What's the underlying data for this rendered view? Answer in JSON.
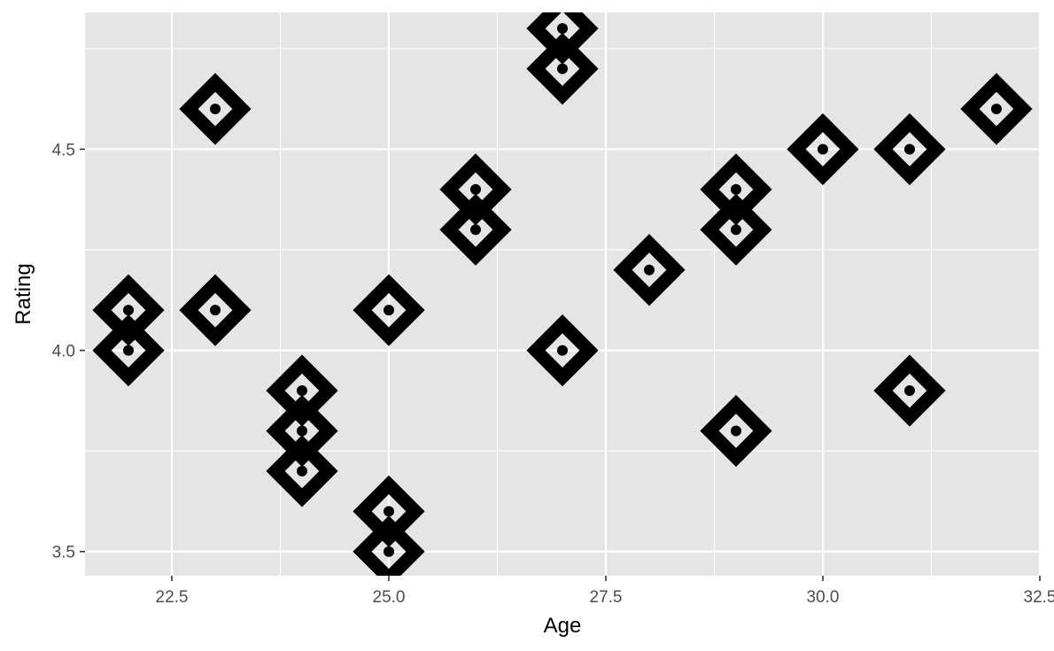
{
  "chart_data": {
    "type": "scatter",
    "title": "",
    "xlabel": "Age",
    "ylabel": "Rating",
    "xlim": [
      21.5,
      32.5
    ],
    "ylim": [
      3.44,
      4.84
    ],
    "x_ticks": [
      22.5,
      25.0,
      27.5,
      30.0,
      32.5
    ],
    "x_tick_labels": [
      "22.5",
      "25.0",
      "27.5",
      "30.0",
      "32.5"
    ],
    "y_ticks": [
      3.5,
      4.0,
      4.5
    ],
    "y_tick_labels": [
      "3.5",
      "4.0",
      "4.5"
    ],
    "grid": true,
    "marker": "diamond",
    "marker_color": "#000000",
    "panel_color": "#E5E5E5",
    "grid_color": "#FFFFFF",
    "points": [
      {
        "x": 22,
        "y": 4.1
      },
      {
        "x": 22,
        "y": 4.0
      },
      {
        "x": 23,
        "y": 4.6
      },
      {
        "x": 23,
        "y": 4.1
      },
      {
        "x": 24,
        "y": 3.9
      },
      {
        "x": 24,
        "y": 3.8
      },
      {
        "x": 24,
        "y": 3.7
      },
      {
        "x": 25,
        "y": 4.1
      },
      {
        "x": 25,
        "y": 3.6
      },
      {
        "x": 25,
        "y": 3.5
      },
      {
        "x": 26,
        "y": 4.4
      },
      {
        "x": 26,
        "y": 4.3
      },
      {
        "x": 27,
        "y": 4.8
      },
      {
        "x": 27,
        "y": 4.7
      },
      {
        "x": 27,
        "y": 4.0
      },
      {
        "x": 28,
        "y": 4.2
      },
      {
        "x": 29,
        "y": 4.4
      },
      {
        "x": 29,
        "y": 4.3
      },
      {
        "x": 29,
        "y": 3.8
      },
      {
        "x": 30,
        "y": 4.5
      },
      {
        "x": 31,
        "y": 4.5
      },
      {
        "x": 31,
        "y": 3.9
      },
      {
        "x": 32,
        "y": 4.6
      }
    ]
  }
}
